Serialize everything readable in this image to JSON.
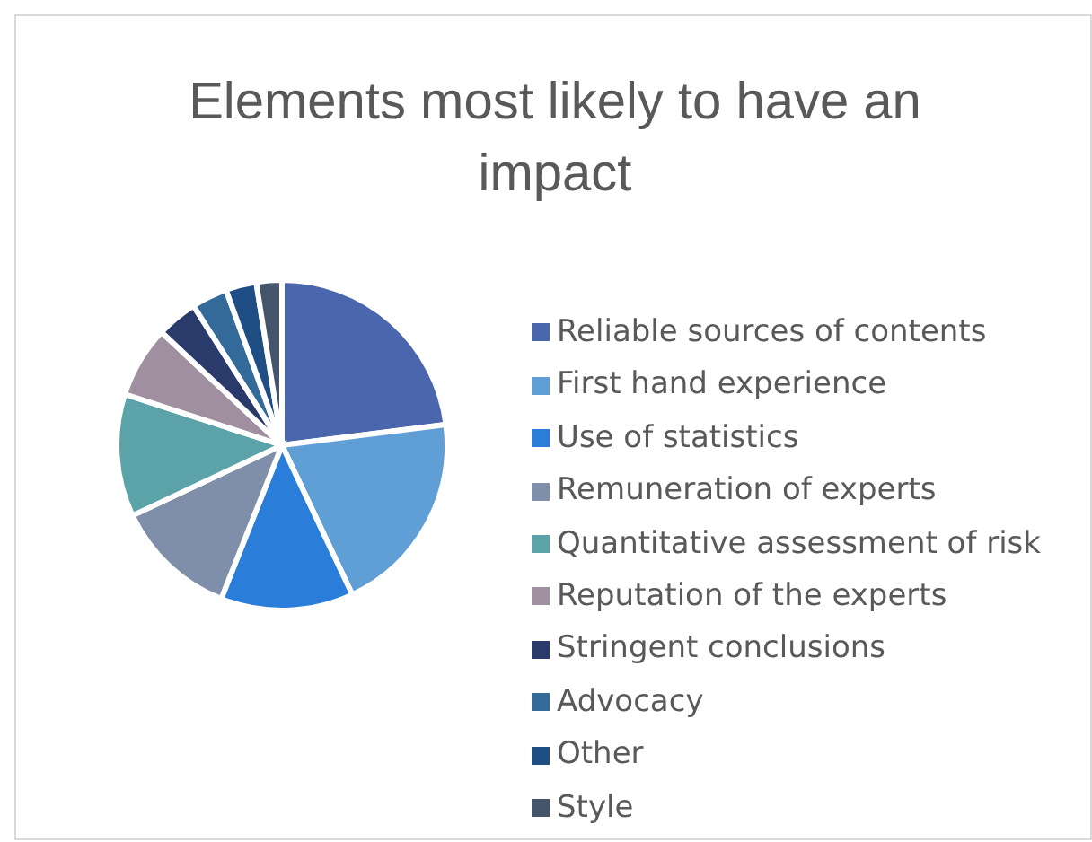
{
  "chart_data": {
    "type": "pie",
    "title": "Elements most likely to have an impact",
    "categories": [
      "Reliable sources of contents",
      "First hand experience",
      "Use of statistics",
      "Remuneration of experts",
      "Quantitative assessment of risk",
      "Reputation of the experts",
      "Stringent conclusions",
      "Advocacy",
      "Other",
      "Style"
    ],
    "values": [
      23,
      20,
      13,
      12,
      12,
      7,
      4,
      3.5,
      3,
      2.5
    ],
    "colors": [
      "#4a66ac",
      "#5f9fd6",
      "#2a7dd9",
      "#7f8faa",
      "#5ba3a8",
      "#9f8fa0",
      "#2a3a6b",
      "#336a9a",
      "#1f4e85",
      "#44546a"
    ],
    "legend": "right"
  }
}
